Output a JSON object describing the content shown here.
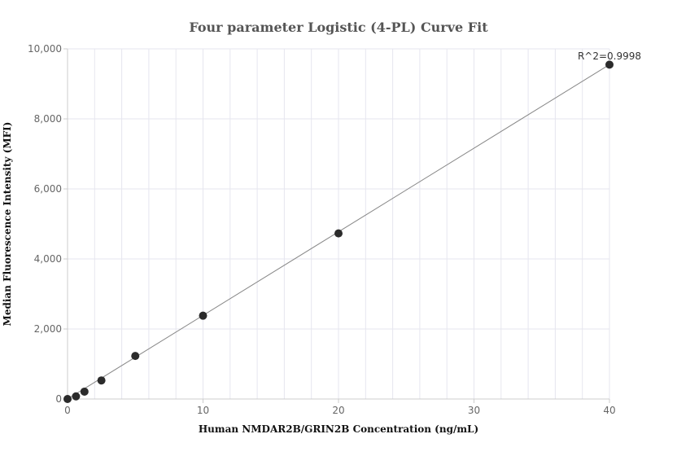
{
  "chart_data": {
    "type": "scatter",
    "title": "Four parameter Logistic (4-PL) Curve Fit",
    "xlabel": "Human NMDAR2B/GRIN2B Concentration (ng/mL)",
    "ylabel": "Median Fluorescence Intensity (MFI)",
    "xlim": [
      0,
      40
    ],
    "ylim": [
      0,
      10000
    ],
    "x_ticks": [
      0,
      10,
      20,
      30,
      40
    ],
    "y_ticks": [
      0,
      2000,
      4000,
      6000,
      8000,
      10000
    ],
    "x_tick_labels": [
      "0",
      "10",
      "20",
      "30",
      "40"
    ],
    "y_tick_labels": [
      "0",
      "2,000",
      "4,000",
      "6,000",
      "8,000",
      "10,000"
    ],
    "grid": true,
    "points": {
      "x": [
        0,
        0.625,
        1.25,
        2.5,
        5,
        10,
        20,
        40
      ],
      "y": [
        0,
        75,
        210,
        530,
        1230,
        2380,
        4730,
        9550
      ]
    },
    "fit_line": {
      "x": [
        0,
        40
      ],
      "y": [
        0,
        9550
      ]
    },
    "annotation": "R^2=0.9998",
    "colors": {
      "points": "#2b2b2b",
      "line": "#888888",
      "grid": "#e6e6ef",
      "axis": "#cccccc"
    }
  }
}
